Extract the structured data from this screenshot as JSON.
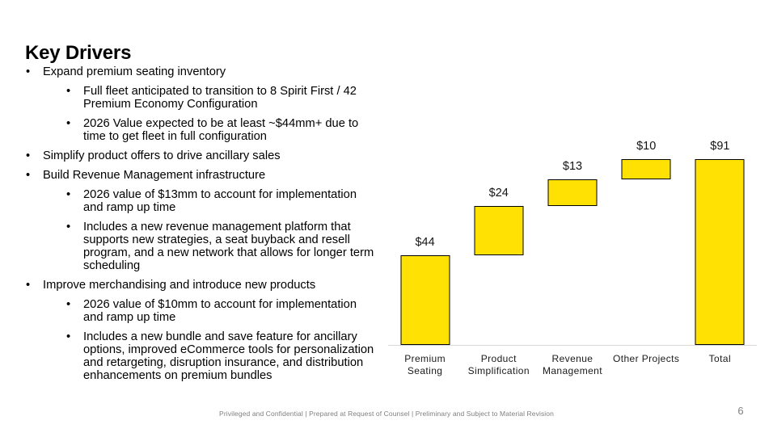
{
  "slide": {
    "title": "Key Drivers",
    "page_number": "6",
    "footer": "Privileged and Confidential | Prepared at Request of Counsel | Preliminary and Subject to Material Revision"
  },
  "bullets": [
    {
      "level": 1,
      "marker": "•",
      "text": "Expand premium seating inventory"
    },
    {
      "level": 2,
      "marker": "•",
      "text": "Full fleet anticipated to transition to 8 Spirit First / 42 Premium Economy Configuration"
    },
    {
      "level": 2,
      "marker": "•",
      "text": "2026 Value expected to be at least ~$44mm+ due to time to get fleet in full configuration"
    },
    {
      "level": 1,
      "marker": "•",
      "text": "Simplify product offers to drive ancillary sales"
    },
    {
      "level": 1,
      "marker": "•",
      "text": "Build Revenue Management infrastructure"
    },
    {
      "level": 2,
      "marker": "•",
      "text": "2026 value of $13mm to account for implementation and ramp up time"
    },
    {
      "level": 2,
      "marker": "•",
      "text": "Includes a new revenue management platform that supports new strategies, a seat buyback and resell program, and a new network that allows for longer term scheduling"
    },
    {
      "level": 1,
      "marker": "•",
      "text": "Improve merchandising and introduce new products"
    },
    {
      "level": 2,
      "marker": "•",
      "text": "2026 value of $10mm to account for implementation and ramp up time"
    },
    {
      "level": 2,
      "marker": "•",
      "text": "Includes a new bundle and save feature for ancillary options, improved eCommerce tools for personalization and retargeting, disruption insurance, and distribution enhancements on premium bundles"
    }
  ],
  "chart_data": {
    "type": "bar",
    "subtype": "waterfall",
    "title": "",
    "xlabel": "",
    "ylabel": "",
    "categories": [
      "Premium Seating",
      "Product Simplification",
      "Revenue Management",
      "Other Projects",
      "Total"
    ],
    "values": [
      44,
      24,
      13,
      10,
      91
    ],
    "bars": [
      {
        "category": "Premium Seating",
        "label": "$44",
        "start": 0,
        "end": 44,
        "value": 44
      },
      {
        "category": "Product Simplification",
        "label": "$24",
        "start": 44,
        "end": 68,
        "value": 24
      },
      {
        "category": "Revenue Management",
        "label": "$13",
        "start": 68,
        "end": 81,
        "value": 13
      },
      {
        "category": "Other Projects",
        "label": "$10",
        "start": 81,
        "end": 91,
        "value": 10
      },
      {
        "category": "Total",
        "label": "$91",
        "start": 0,
        "end": 91,
        "value": 91
      }
    ],
    "ylim": [
      0,
      99
    ],
    "grid": false,
    "legend": false,
    "value_label_position": "above-bar",
    "bar_color": "#FFE103",
    "bar_border_color": "#000000",
    "baseline_color": "#D9D9D9"
  }
}
